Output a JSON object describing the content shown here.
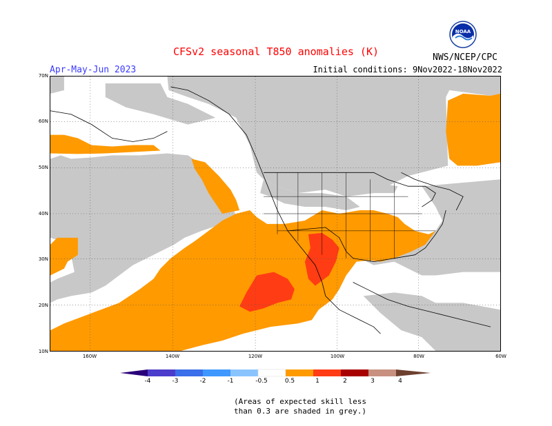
{
  "header": {
    "title": "CFSv2 seasonal T850 anomalies (K)",
    "season": "Apr-May-Jun 2023",
    "initial_conditions": "Initial conditions: 9Nov2022-18Nov2022",
    "agency": "NWS/NCEP/CPC",
    "logo_text": "NOAA"
  },
  "map": {
    "region": "North America",
    "lat_labels": [
      "70N",
      "60N",
      "50N",
      "40N",
      "30N",
      "20N",
      "10N"
    ],
    "lon_labels": [
      "160W",
      "140W",
      "120W",
      "100W",
      "80W",
      "60W"
    ],
    "colors": {
      "grey_no_skill": "#c8c8c8",
      "anomaly_0_5_to_1": "#ff9a00",
      "anomaly_1_to_2": "#ff3c14",
      "ocean_land_background": "#ffffff"
    }
  },
  "colorbar": {
    "labels": [
      "-4",
      "-3",
      "-2",
      "-1",
      "-0.5",
      "0.5",
      "1",
      "2",
      "3",
      "4"
    ],
    "colors": [
      "#2a007a",
      "#4b3ccc",
      "#3a6eea",
      "#3e98ff",
      "#8ac4ff",
      "#ffffff",
      "#ff9a00",
      "#ff3c14",
      "#a80000",
      "#c89080",
      "#6e4030"
    ]
  },
  "footnote": {
    "line1": "(Areas of expected skill less",
    "line2": "than 0.3 are shaded in grey.)"
  }
}
